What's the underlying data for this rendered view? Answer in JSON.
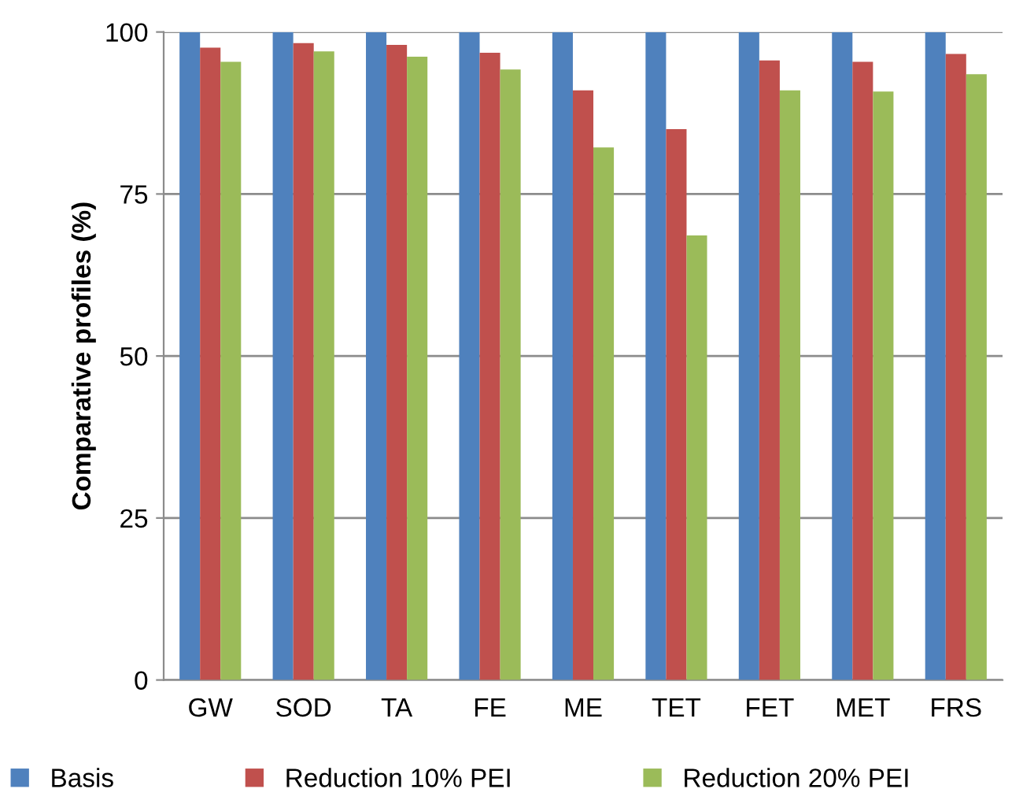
{
  "chart_data": {
    "type": "bar",
    "ylabel": "Comparative profiles (%)",
    "categories": [
      "GW",
      "SOD",
      "TA",
      "FE",
      "ME",
      "TET",
      "FET",
      "MET",
      "FRS"
    ],
    "series": [
      {
        "name": "Basis",
        "color": "#4f81bd",
        "values": [
          100,
          100,
          100,
          100,
          100,
          100,
          100,
          100,
          100
        ]
      },
      {
        "name": "Reduction 10% PEI",
        "color": "#c0504d",
        "values": [
          97.6,
          98.3,
          98,
          96.8,
          91,
          85,
          95.6,
          95.4,
          96.6
        ]
      },
      {
        "name": "Reduction 20% PEI",
        "color": "#9bbb59",
        "values": [
          95.4,
          97,
          96.2,
          94.2,
          82.2,
          68.6,
          91,
          90.8,
          93.5
        ]
      }
    ],
    "ylim": [
      0,
      100
    ],
    "yticks": [
      0,
      25,
      50,
      75,
      100
    ],
    "grid": "y",
    "legend": "bottom"
  }
}
